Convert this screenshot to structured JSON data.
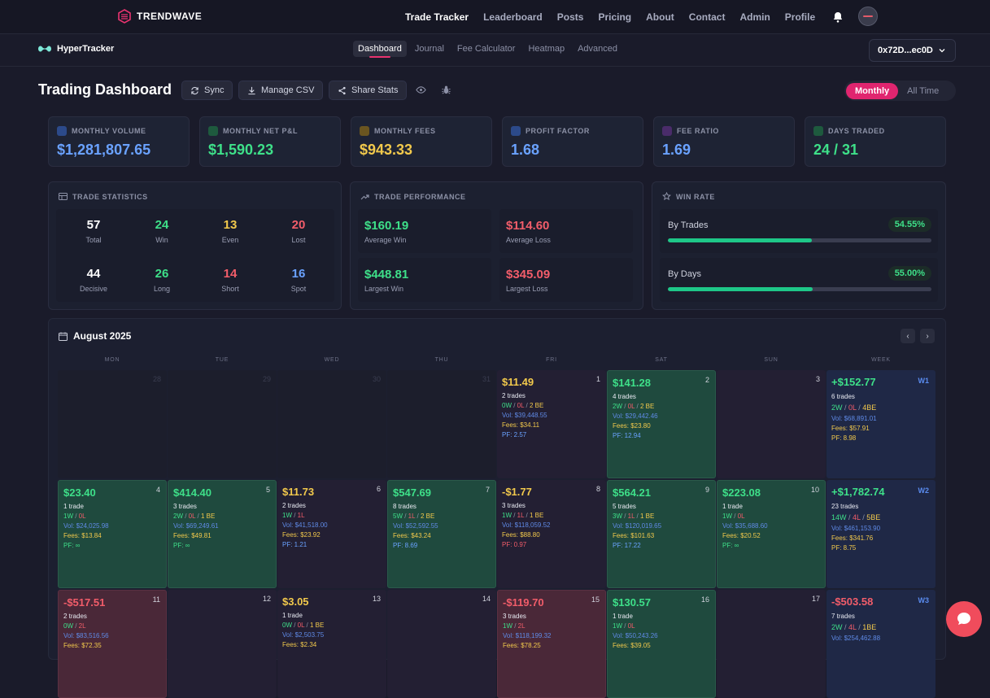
{
  "topnav": {
    "brand": "TRENDWAVE",
    "links": [
      "Trade Tracker",
      "Leaderboard",
      "Posts",
      "Pricing",
      "About",
      "Contact",
      "Admin",
      "Profile"
    ],
    "active": "Trade Tracker"
  },
  "subnav": {
    "app_name": "HyperTracker",
    "tabs": [
      "Dashboard",
      "Journal",
      "Fee Calculator",
      "Heatmap",
      "Advanced"
    ],
    "active_tab": "Dashboard",
    "wallet": "0x72D...ec0D"
  },
  "header": {
    "title": "Trading Dashboard",
    "sync": "Sync",
    "manage_csv": "Manage CSV",
    "share_stats": "Share Stats",
    "toggle_monthly": "Monthly",
    "toggle_all_time": "All Time"
  },
  "stats": [
    {
      "label": "MONTHLY VOLUME",
      "value": "$1,281,807.65",
      "color": "#6aa2ff",
      "icon": "bar-chart-icon"
    },
    {
      "label": "MONTHLY NET P&L",
      "value": "$1,590.23",
      "color": "#3ee089",
      "icon": "trend-up-icon"
    },
    {
      "label": "MONTHLY FEES",
      "value": "$943.33",
      "color": "#f2c94c",
      "icon": "receipt-icon"
    },
    {
      "label": "PROFIT FACTOR",
      "value": "1.68",
      "color": "#6aa2ff",
      "icon": "target-icon"
    },
    {
      "label": "FEE RATIO",
      "value": "1.69",
      "color": "#6aa2ff",
      "icon": "percent-icon"
    },
    {
      "label": "DAYS TRADED",
      "value": "24 / 31",
      "color": "#3ee089",
      "icon": "calendar-icon"
    }
  ],
  "trade_statistics": {
    "title": "TRADE STATISTICS",
    "items": [
      {
        "value": "57",
        "label": "Total",
        "color": "#ffffff"
      },
      {
        "value": "24",
        "label": "Win",
        "color": "#3ee089"
      },
      {
        "value": "13",
        "label": "Even",
        "color": "#f2c94c"
      },
      {
        "value": "20",
        "label": "Lost",
        "color": "#f25d6a"
      },
      {
        "value": "44",
        "label": "Decisive",
        "color": "#ffffff"
      },
      {
        "value": "26",
        "label": "Long",
        "color": "#3ee089"
      },
      {
        "value": "14",
        "label": "Short",
        "color": "#f25d6a"
      },
      {
        "value": "16",
        "label": "Spot",
        "color": "#6aa2ff"
      }
    ]
  },
  "trade_performance": {
    "title": "TRADE PERFORMANCE",
    "items": [
      {
        "value": "$160.19",
        "label": "Average Win",
        "color": "#3ee089"
      },
      {
        "value": "$114.60",
        "label": "Average Loss",
        "color": "#f25d6a"
      },
      {
        "value": "$448.81",
        "label": "Largest Win",
        "color": "#3ee089"
      },
      {
        "value": "$345.09",
        "label": "Largest Loss",
        "color": "#f25d6a"
      }
    ]
  },
  "win_rate": {
    "title": "WIN RATE",
    "items": [
      {
        "label": "By Trades",
        "value": "54.55%",
        "fraction": 0.5455
      },
      {
        "label": "By Days",
        "value": "55.00%",
        "fraction": 0.55
      }
    ]
  },
  "calendar": {
    "month": "August 2025",
    "prev": "‹",
    "next": "›",
    "days_of_week": [
      "MON",
      "TUE",
      "WED",
      "THU",
      "FRI",
      "SAT",
      "SUN",
      "WEEK"
    ],
    "rows": [
      [
        {
          "num": "28",
          "type": "empty"
        },
        {
          "num": "29",
          "type": "empty"
        },
        {
          "num": "30",
          "type": "empty"
        },
        {
          "num": "31",
          "type": "empty"
        },
        {
          "num": "1",
          "type": "neutral",
          "pnl": "$11.49",
          "pnl_color": "y",
          "trades": "2 trades",
          "wl": [
            [
              "0W",
              "g"
            ],
            [
              "0L",
              "r"
            ],
            [
              "2 BE",
              "y"
            ]
          ],
          "vol": "Vol: $39,448.55",
          "fees": "Fees: $34.11",
          "pf": "PF: 2.57",
          "pf_color": "b"
        },
        {
          "num": "2",
          "type": "green",
          "pnl": "$141.28",
          "pnl_color": "g",
          "trades": "4 trades",
          "wl": [
            [
              "2W",
              "g"
            ],
            [
              "0L",
              "r"
            ],
            [
              "2 BE",
              "y"
            ]
          ],
          "vol": "Vol: $29,442.46",
          "fees": "Fees: $23.80",
          "pf": "PF: 12.94",
          "pf_color": "b"
        },
        {
          "num": "3",
          "type": "neutral"
        },
        {
          "tag": "W1",
          "type": "week",
          "pnl": "+$152.77",
          "pnl_color": "g",
          "trades": "6 trades",
          "wl": [
            [
              "2W",
              "g"
            ],
            [
              "0L",
              "r"
            ],
            [
              "4BE",
              "y"
            ]
          ],
          "vol": "Vol: $68,891.01",
          "fees": "Fees: $57.91",
          "pf": "PF: 8.98"
        }
      ],
      [
        {
          "num": "4",
          "type": "green",
          "pnl": "$23.40",
          "pnl_color": "g",
          "trades": "1 trade",
          "wl": [
            [
              "1W",
              "g"
            ],
            [
              "0L",
              "r"
            ]
          ],
          "vol": "Vol: $24,025.98",
          "fees": "Fees: $13.84",
          "pf": "PF: ∞",
          "pf_color": "g"
        },
        {
          "num": "5",
          "type": "green",
          "pnl": "$414.40",
          "pnl_color": "g",
          "trades": "3 trades",
          "wl": [
            [
              "2W",
              "g"
            ],
            [
              "0L",
              "r"
            ],
            [
              "1 BE",
              "y"
            ]
          ],
          "vol": "Vol: $69,249.61",
          "fees": "Fees: $49.81",
          "pf": "PF: ∞",
          "pf_color": "g"
        },
        {
          "num": "6",
          "type": "neutral",
          "pnl": "$11.73",
          "pnl_color": "y",
          "trades": "2 trades",
          "wl": [
            [
              "1W",
              "g"
            ],
            [
              "1L",
              "r"
            ]
          ],
          "vol": "Vol: $41,518.00",
          "fees": "Fees: $23.92",
          "pf": "PF: 1.21",
          "pf_color": "b"
        },
        {
          "num": "7",
          "type": "green",
          "pnl": "$547.69",
          "pnl_color": "g",
          "trades": "8 trades",
          "wl": [
            [
              "5W",
              "g"
            ],
            [
              "1L",
              "r"
            ],
            [
              "2 BE",
              "y"
            ]
          ],
          "vol": "Vol: $52,592.55",
          "fees": "Fees: $43.24",
          "pf": "PF: 8.69",
          "pf_color": "b"
        },
        {
          "num": "8",
          "type": "neutral",
          "pnl": "-$1.77",
          "pnl_color": "y",
          "trades": "3 trades",
          "wl": [
            [
              "1W",
              "g"
            ],
            [
              "1L",
              "r"
            ],
            [
              "1 BE",
              "y"
            ]
          ],
          "vol": "Vol: $118,059.52",
          "fees": "Fees: $88.80",
          "pf": "PF: 0.97",
          "pf_color": "r"
        },
        {
          "num": "9",
          "type": "green",
          "pnl": "$564.21",
          "pnl_color": "g",
          "trades": "5 trades",
          "wl": [
            [
              "3W",
              "g"
            ],
            [
              "1L",
              "r"
            ],
            [
              "1 BE",
              "y"
            ]
          ],
          "vol": "Vol: $120,019.65",
          "fees": "Fees: $101.63",
          "pf": "PF: 17.22",
          "pf_color": "b"
        },
        {
          "num": "10",
          "type": "green",
          "pnl": "$223.08",
          "pnl_color": "g",
          "trades": "1 trade",
          "wl": [
            [
              "1W",
              "g"
            ],
            [
              "0L",
              "r"
            ]
          ],
          "vol": "Vol: $35,688.60",
          "fees": "Fees: $20.52",
          "pf": "PF: ∞",
          "pf_color": "g"
        },
        {
          "tag": "W2",
          "type": "week",
          "pnl": "+$1,782.74",
          "pnl_color": "g",
          "trades": "23 trades",
          "wl": [
            [
              "14W",
              "g"
            ],
            [
              "4L",
              "r"
            ],
            [
              "5BE",
              "y"
            ]
          ],
          "vol": "Vol: $461,153.90",
          "fees": "Fees: $341.76",
          "pf": "PF: 8.75"
        }
      ],
      [
        {
          "num": "11",
          "type": "red",
          "pnl": "-$517.51",
          "pnl_color": "r",
          "trades": "2 trades",
          "wl": [
            [
              "0W",
              "g"
            ],
            [
              "2L",
              "r"
            ]
          ],
          "vol": "Vol: $83,516.56",
          "fees": "Fees: $72.35"
        },
        {
          "num": "12",
          "type": "neutral"
        },
        {
          "num": "13",
          "type": "neutral",
          "pnl": "$3.05",
          "pnl_color": "y",
          "trades": "1 trade",
          "wl": [
            [
              "0W",
              "g"
            ],
            [
              "0L",
              "r"
            ],
            [
              "1 BE",
              "y"
            ]
          ],
          "vol": "Vol: $2,503.75",
          "fees": "Fees: $2.34"
        },
        {
          "num": "14",
          "type": "neutral"
        },
        {
          "num": "15",
          "type": "red",
          "pnl": "-$119.70",
          "pnl_color": "r",
          "trades": "3 trades",
          "wl": [
            [
              "1W",
              "g"
            ],
            [
              "2L",
              "r"
            ]
          ],
          "vol": "Vol: $118,199.32",
          "fees": "Fees: $78.25"
        },
        {
          "num": "16",
          "type": "green",
          "pnl": "$130.57",
          "pnl_color": "g",
          "trades": "1 trade",
          "wl": [
            [
              "1W",
              "g"
            ],
            [
              "0L",
              "r"
            ]
          ],
          "vol": "Vol: $50,243.26",
          "fees": "Fees: $39.05"
        },
        {
          "num": "17",
          "type": "neutral"
        },
        {
          "tag": "W3",
          "type": "week",
          "pnl": "-$503.58",
          "pnl_color": "r",
          "trades": "7 trades",
          "wl": [
            [
              "2W",
              "g"
            ],
            [
              "4L",
              "r"
            ],
            [
              "1BE",
              "y"
            ]
          ],
          "vol": "Vol: $254,462.88",
          "fees": "",
          "pf": ""
        }
      ]
    ]
  }
}
